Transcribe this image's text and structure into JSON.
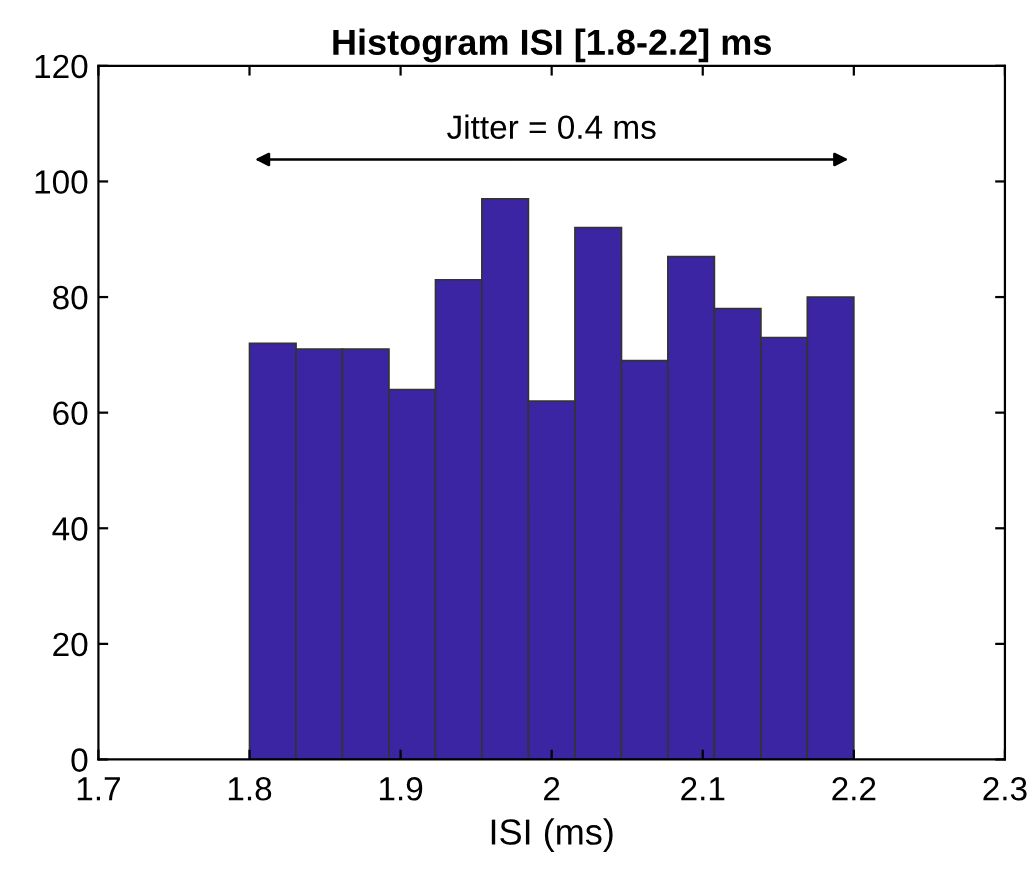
{
  "chart_data": {
    "type": "histogram",
    "title": "Histogram ISI [1.8-2.2] ms",
    "xlabel": "ISI (ms)",
    "bins": [
      1.8,
      1.8308,
      1.8615,
      1.8923,
      1.9231,
      1.9538,
      1.9846,
      2.0154,
      2.0462,
      2.0769,
      2.1077,
      2.1385,
      2.1692,
      2.2
    ],
    "values": [
      72,
      71,
      71,
      64,
      83,
      97,
      62,
      92,
      69,
      87,
      78,
      73,
      80
    ],
    "color": "#3b25a3",
    "xlim": [
      1.7,
      2.3
    ],
    "xticks": [
      1.7,
      1.8,
      1.9,
      2,
      2.1,
      2.2,
      2.3
    ],
    "ylim": [
      0,
      120
    ],
    "yticks": [
      0,
      20,
      40,
      60,
      80,
      100,
      120
    ],
    "grid": false,
    "annotations": [
      "Jitter = 0.4 ms"
    ]
  }
}
